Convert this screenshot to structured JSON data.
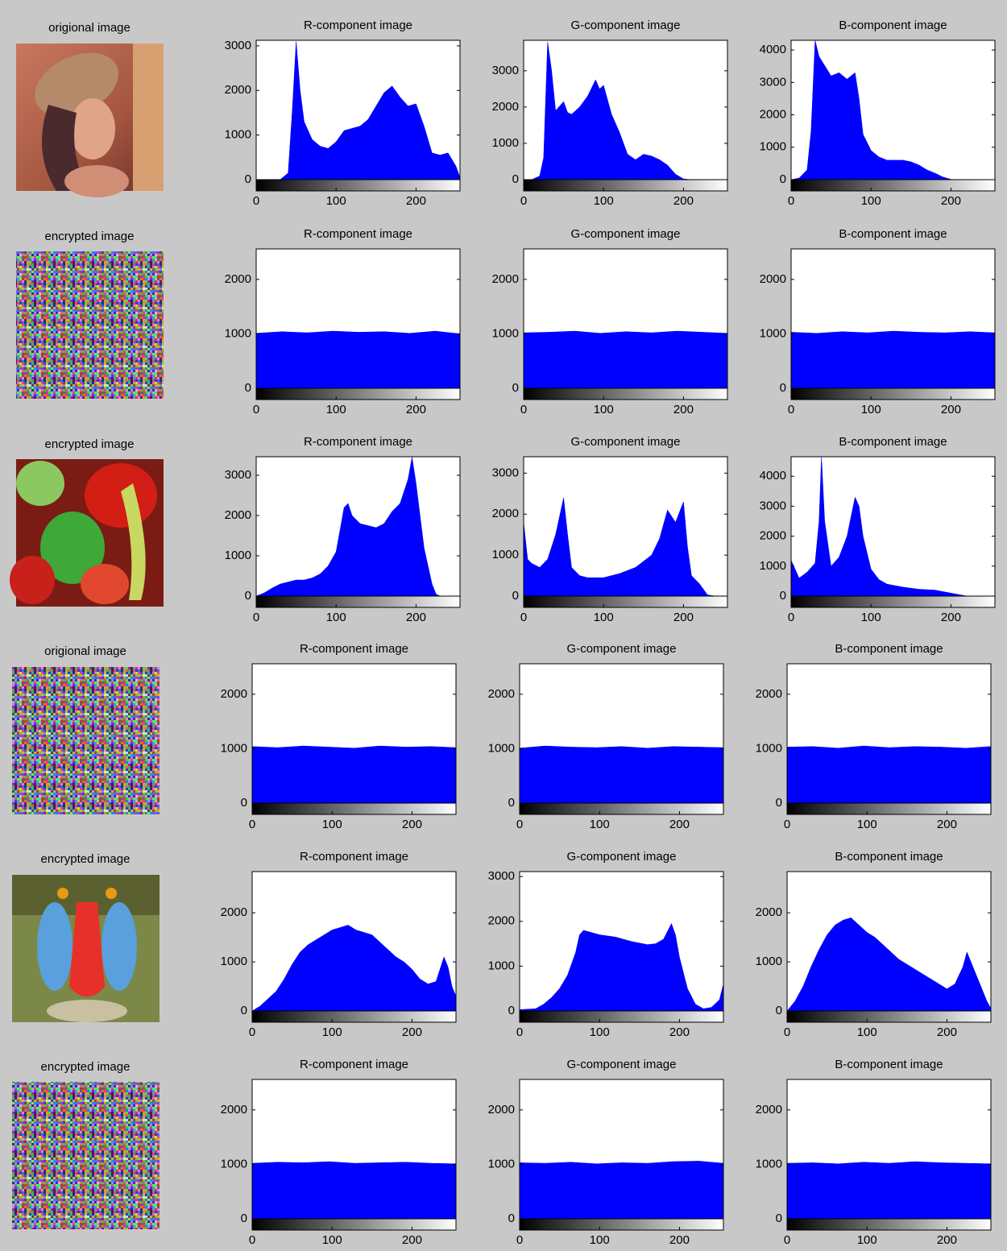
{
  "image_labels": [
    "origional image",
    "encrypted image",
    "encrypted image",
    "origional image",
    "encrypted image",
    "encrypted image"
  ],
  "chart_data": [
    {
      "type": "area",
      "title": "R-component image",
      "color": "#0000ff",
      "xlim": [
        0,
        255
      ],
      "xticks": [
        0,
        100,
        200
      ],
      "ylim": [
        0,
        3125
      ],
      "yticks": [
        0,
        1000,
        2000,
        3000
      ],
      "x": [
        0,
        30,
        40,
        45,
        50,
        55,
        60,
        70,
        80,
        90,
        100,
        110,
        120,
        130,
        140,
        150,
        160,
        170,
        180,
        190,
        200,
        210,
        220,
        230,
        240,
        250,
        255
      ],
      "values": [
        0,
        0,
        150,
        1500,
        3100,
        2000,
        1300,
        900,
        750,
        700,
        850,
        1100,
        1150,
        1200,
        1350,
        1650,
        1950,
        2100,
        1850,
        1650,
        1700,
        1200,
        600,
        550,
        600,
        300,
        50
      ]
    },
    {
      "type": "area",
      "title": "G-component image",
      "color": "#0000ff",
      "xlim": [
        0,
        255
      ],
      "xticks": [
        0,
        100,
        200
      ],
      "ylim": [
        0,
        3840
      ],
      "yticks": [
        0,
        1000,
        2000,
        3000
      ],
      "x": [
        0,
        10,
        20,
        25,
        30,
        35,
        40,
        50,
        55,
        60,
        70,
        80,
        90,
        95,
        100,
        110,
        120,
        130,
        140,
        150,
        160,
        170,
        180,
        190,
        200,
        210,
        255
      ],
      "values": [
        0,
        0,
        100,
        600,
        3800,
        3000,
        1900,
        2150,
        1850,
        1800,
        2000,
        2300,
        2750,
        2500,
        2600,
        1800,
        1300,
        700,
        550,
        700,
        650,
        550,
        400,
        150,
        20,
        0,
        0
      ]
    },
    {
      "type": "area",
      "title": "B-component image",
      "color": "#0000ff",
      "xlim": [
        0,
        255
      ],
      "xticks": [
        0,
        100,
        200
      ],
      "ylim": [
        0,
        4300
      ],
      "yticks": [
        0,
        1000,
        2000,
        3000,
        4000
      ],
      "x": [
        0,
        10,
        20,
        25,
        30,
        35,
        40,
        50,
        60,
        70,
        80,
        85,
        90,
        100,
        110,
        120,
        130,
        140,
        150,
        160,
        170,
        180,
        190,
        200,
        210,
        255
      ],
      "values": [
        0,
        50,
        300,
        1500,
        4300,
        3800,
        3600,
        3200,
        3300,
        3100,
        3300,
        2500,
        1400,
        900,
        700,
        600,
        600,
        600,
        550,
        450,
        300,
        200,
        80,
        10,
        0,
        0
      ]
    },
    {
      "type": "area",
      "title": "R-component image",
      "color": "#0000ff",
      "xlim": [
        0,
        255
      ],
      "xticks": [
        0,
        100,
        200
      ],
      "ylim": [
        0,
        2560
      ],
      "yticks": [
        0,
        1000,
        2000
      ],
      "x": [
        0,
        32,
        64,
        96,
        128,
        160,
        192,
        224,
        255
      ],
      "values": [
        1010,
        1040,
        1020,
        1050,
        1030,
        1040,
        1010,
        1050,
        1000
      ]
    },
    {
      "type": "area",
      "title": "G-component image",
      "color": "#0000ff",
      "xlim": [
        0,
        255
      ],
      "xticks": [
        0,
        100,
        200
      ],
      "ylim": [
        0,
        2560
      ],
      "yticks": [
        0,
        1000,
        2000
      ],
      "x": [
        0,
        32,
        64,
        96,
        128,
        160,
        192,
        224,
        255
      ],
      "values": [
        1020,
        1030,
        1050,
        1010,
        1040,
        1020,
        1050,
        1030,
        1010
      ]
    },
    {
      "type": "area",
      "title": "B-component image",
      "color": "#0000ff",
      "xlim": [
        0,
        255
      ],
      "xticks": [
        0,
        100,
        200
      ],
      "ylim": [
        0,
        2560
      ],
      "yticks": [
        0,
        1000,
        2000
      ],
      "x": [
        0,
        32,
        64,
        96,
        128,
        160,
        192,
        224,
        255
      ],
      "values": [
        1030,
        1010,
        1040,
        1020,
        1050,
        1030,
        1020,
        1040,
        1020
      ]
    },
    {
      "type": "area",
      "title": "R-component image",
      "color": "#0000ff",
      "xlim": [
        0,
        255
      ],
      "xticks": [
        0,
        100,
        200
      ],
      "ylim": [
        0,
        3460
      ],
      "yticks": [
        0,
        1000,
        2000,
        3000
      ],
      "x": [
        0,
        10,
        20,
        30,
        40,
        50,
        60,
        70,
        80,
        90,
        100,
        110,
        115,
        120,
        130,
        140,
        150,
        160,
        170,
        180,
        190,
        195,
        200,
        210,
        220,
        225,
        230,
        255
      ],
      "values": [
        0,
        80,
        200,
        300,
        350,
        400,
        400,
        450,
        550,
        750,
        1100,
        2200,
        2300,
        2000,
        1800,
        1750,
        1700,
        1800,
        2100,
        2300,
        2900,
        3450,
        2800,
        1200,
        300,
        50,
        0,
        0
      ]
    },
    {
      "type": "area",
      "title": "G-component image",
      "color": "#0000ff",
      "xlim": [
        0,
        255
      ],
      "xticks": [
        0,
        100,
        200
      ],
      "ylim": [
        0,
        3400
      ],
      "yticks": [
        0,
        1000,
        2000,
        3000
      ],
      "x": [
        0,
        5,
        10,
        20,
        30,
        40,
        50,
        55,
        60,
        70,
        80,
        90,
        100,
        120,
        140,
        160,
        170,
        180,
        190,
        200,
        205,
        210,
        220,
        230,
        240,
        255
      ],
      "values": [
        1800,
        900,
        800,
        700,
        900,
        1500,
        2400,
        1500,
        700,
        500,
        450,
        450,
        450,
        550,
        700,
        1000,
        1400,
        2100,
        1800,
        2300,
        1200,
        500,
        300,
        30,
        0,
        0
      ]
    },
    {
      "type": "area",
      "title": "B-component image",
      "color": "#0000ff",
      "xlim": [
        0,
        255
      ],
      "xticks": [
        0,
        100,
        200
      ],
      "ylim": [
        0,
        4650
      ],
      "yticks": [
        0,
        1000,
        2000,
        3000,
        4000
      ],
      "x": [
        0,
        10,
        20,
        30,
        35,
        38,
        42,
        50,
        60,
        70,
        80,
        85,
        90,
        100,
        110,
        120,
        140,
        160,
        180,
        190,
        200,
        210,
        220,
        255
      ],
      "values": [
        1200,
        600,
        800,
        1100,
        2500,
        4650,
        2500,
        1000,
        1300,
        2000,
        3300,
        3000,
        2000,
        900,
        550,
        400,
        300,
        230,
        200,
        150,
        100,
        50,
        0,
        0
      ]
    },
    {
      "type": "area",
      "title": "R-component image",
      "color": "#0000ff",
      "xlim": [
        0,
        255
      ],
      "xticks": [
        0,
        100,
        200
      ],
      "ylim": [
        0,
        2560
      ],
      "yticks": [
        0,
        1000,
        2000
      ],
      "x": [
        0,
        32,
        64,
        96,
        128,
        160,
        192,
        224,
        255
      ],
      "values": [
        1040,
        1020,
        1050,
        1030,
        1010,
        1050,
        1030,
        1040,
        1020
      ]
    },
    {
      "type": "area",
      "title": "G-component image",
      "color": "#0000ff",
      "xlim": [
        0,
        255
      ],
      "xticks": [
        0,
        100,
        200
      ],
      "ylim": [
        0,
        2560
      ],
      "yticks": [
        0,
        1000,
        2000
      ],
      "x": [
        0,
        32,
        64,
        96,
        128,
        160,
        192,
        224,
        255
      ],
      "values": [
        1010,
        1050,
        1030,
        1020,
        1040,
        1010,
        1040,
        1030,
        1020
      ]
    },
    {
      "type": "area",
      "title": "B-component image",
      "color": "#0000ff",
      "xlim": [
        0,
        255
      ],
      "xticks": [
        0,
        100,
        200
      ],
      "ylim": [
        0,
        2560
      ],
      "yticks": [
        0,
        1000,
        2000
      ],
      "x": [
        0,
        32,
        64,
        96,
        128,
        160,
        192,
        224,
        255
      ],
      "values": [
        1030,
        1040,
        1010,
        1050,
        1020,
        1040,
        1030,
        1010,
        1040
      ]
    },
    {
      "type": "area",
      "title": "R-component image",
      "color": "#0000ff",
      "xlim": [
        0,
        255
      ],
      "xticks": [
        0,
        100,
        200
      ],
      "ylim": [
        0,
        2840
      ],
      "yticks": [
        0,
        1000,
        2000
      ],
      "x": [
        0,
        10,
        20,
        30,
        40,
        50,
        60,
        70,
        80,
        90,
        100,
        110,
        120,
        130,
        140,
        150,
        160,
        170,
        180,
        190,
        200,
        210,
        220,
        230,
        240,
        245,
        250,
        255
      ],
      "values": [
        0,
        100,
        250,
        400,
        650,
        950,
        1200,
        1350,
        1450,
        1550,
        1650,
        1700,
        1750,
        1650,
        1600,
        1550,
        1400,
        1250,
        1100,
        1000,
        850,
        650,
        550,
        600,
        1100,
        900,
        500,
        300
      ]
    },
    {
      "type": "area",
      "title": "G-component image",
      "color": "#0000ff",
      "xlim": [
        0,
        255
      ],
      "xticks": [
        0,
        100,
        200
      ],
      "ylim": [
        0,
        3110
      ],
      "yticks": [
        0,
        1000,
        2000,
        3000
      ],
      "x": [
        0,
        20,
        30,
        40,
        50,
        60,
        70,
        75,
        80,
        90,
        100,
        120,
        140,
        160,
        170,
        180,
        190,
        195,
        200,
        210,
        220,
        230,
        240,
        250,
        255
      ],
      "values": [
        30,
        50,
        150,
        300,
        500,
        800,
        1300,
        1700,
        1800,
        1750,
        1700,
        1650,
        1550,
        1480,
        1500,
        1600,
        1950,
        1700,
        1200,
        500,
        150,
        50,
        80,
        250,
        600
      ]
    },
    {
      "type": "area",
      "title": "B-component image",
      "color": "#0000ff",
      "xlim": [
        0,
        255
      ],
      "xticks": [
        0,
        100,
        200
      ],
      "ylim": [
        0,
        2840
      ],
      "yticks": [
        0,
        1000,
        2000
      ],
      "x": [
        0,
        10,
        20,
        30,
        40,
        50,
        60,
        70,
        80,
        90,
        100,
        110,
        120,
        130,
        140,
        150,
        160,
        170,
        180,
        190,
        200,
        210,
        220,
        225,
        230,
        240,
        250,
        255
      ],
      "values": [
        0,
        200,
        500,
        900,
        1250,
        1550,
        1750,
        1850,
        1900,
        1750,
        1600,
        1500,
        1350,
        1200,
        1050,
        950,
        850,
        750,
        650,
        550,
        450,
        550,
        900,
        1200,
        1000,
        600,
        200,
        50
      ]
    },
    {
      "type": "area",
      "title": "R-component image",
      "color": "#0000ff",
      "xlim": [
        0,
        255
      ],
      "xticks": [
        0,
        100,
        200
      ],
      "ylim": [
        0,
        2560
      ],
      "yticks": [
        0,
        1000,
        2000
      ],
      "x": [
        0,
        32,
        64,
        96,
        128,
        160,
        192,
        224,
        255
      ],
      "values": [
        1020,
        1040,
        1030,
        1050,
        1020,
        1030,
        1040,
        1020,
        1010
      ]
    },
    {
      "type": "area",
      "title": "G-component image",
      "color": "#0000ff",
      "xlim": [
        0,
        255
      ],
      "xticks": [
        0,
        100,
        200
      ],
      "ylim": [
        0,
        2560
      ],
      "yticks": [
        0,
        1000,
        2000
      ],
      "x": [
        0,
        32,
        64,
        96,
        128,
        160,
        192,
        224,
        255
      ],
      "values": [
        1030,
        1020,
        1040,
        1010,
        1030,
        1020,
        1050,
        1060,
        1020
      ]
    },
    {
      "type": "area",
      "title": "B-component image",
      "color": "#0000ff",
      "xlim": [
        0,
        255
      ],
      "xticks": [
        0,
        100,
        200
      ],
      "ylim": [
        0,
        2560
      ],
      "yticks": [
        0,
        1000,
        2000
      ],
      "x": [
        0,
        32,
        64,
        96,
        128,
        160,
        192,
        224,
        255
      ],
      "values": [
        1020,
        1030,
        1010,
        1040,
        1020,
        1050,
        1030,
        1020,
        1010
      ]
    }
  ]
}
